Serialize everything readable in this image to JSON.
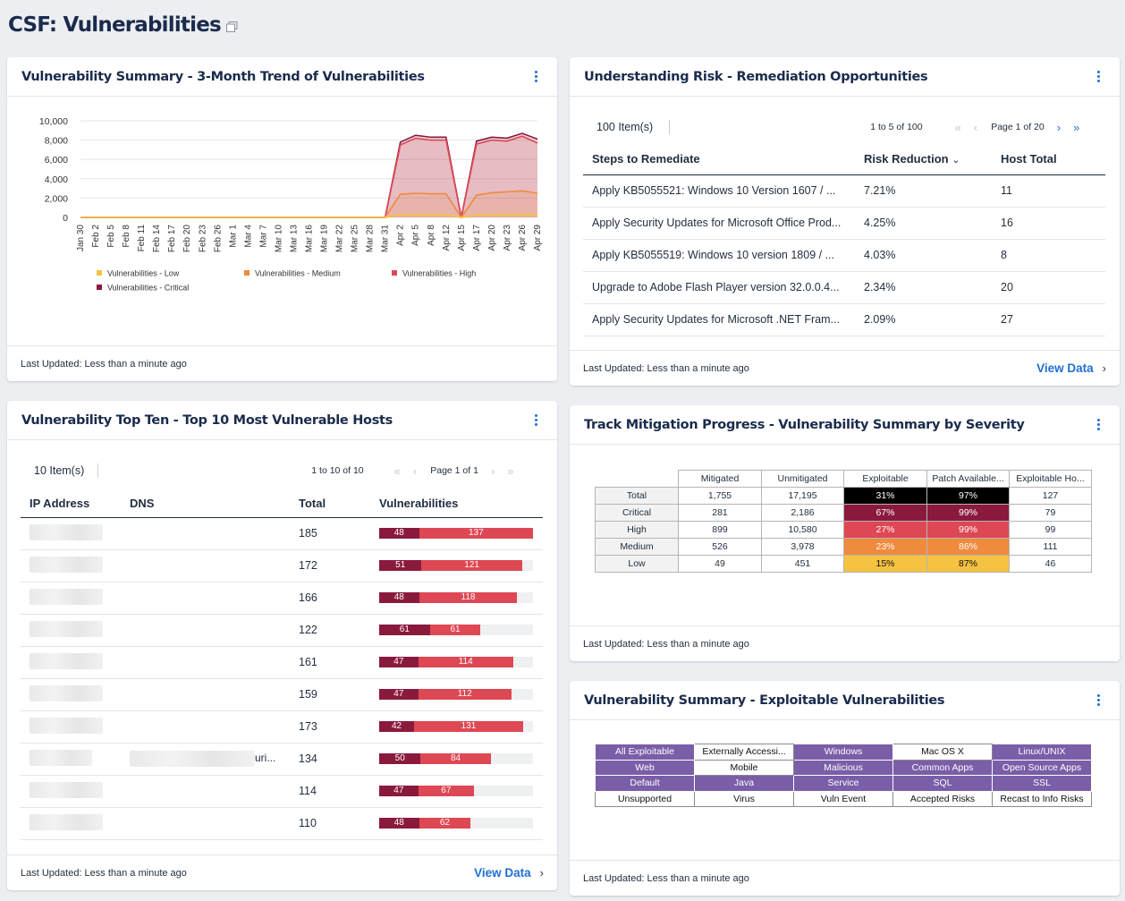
{
  "page": {
    "title": "CSF: Vulnerabilities"
  },
  "footer_updated": "Last Updated: Less than a minute ago",
  "view_data": "View Data",
  "trend_card": {
    "title": "Vulnerability Summary - 3-Month Trend of Vulnerabilities",
    "chart_data": {
      "type": "area",
      "yticks": [
        "10,000",
        "8,000",
        "6,000",
        "4,000",
        "2,000",
        "0"
      ],
      "ylim": [
        0,
        10000
      ],
      "categories": [
        "Jan 30",
        "Feb 2",
        "Feb 5",
        "Feb 8",
        "Feb 11",
        "Feb 14",
        "Feb 17",
        "Feb 20",
        "Feb 23",
        "Feb 26",
        "Mar 1",
        "Mar 4",
        "Mar 7",
        "Mar 10",
        "Mar 13",
        "Mar 16",
        "Mar 19",
        "Mar 22",
        "Mar 25",
        "Mar 28",
        "Mar 31",
        "Apr 2",
        "Apr 5",
        "Apr 8",
        "Apr 12",
        "Apr 15",
        "Apr 17",
        "Apr 20",
        "Apr 23",
        "Apr 26",
        "Apr 29"
      ],
      "series": [
        {
          "name": "Vulnerabilities - Critical",
          "color": "#8a1a3c",
          "values": [
            0,
            0,
            0,
            0,
            0,
            0,
            0,
            0,
            0,
            0,
            0,
            0,
            0,
            0,
            0,
            0,
            0,
            0,
            0,
            0,
            0,
            7800,
            8500,
            8300,
            8300,
            0,
            7900,
            8300,
            8200,
            8700,
            8100
          ]
        },
        {
          "name": "Vulnerabilities - High",
          "color": "#dd4854",
          "values": [
            0,
            0,
            0,
            0,
            0,
            0,
            0,
            0,
            0,
            0,
            0,
            0,
            0,
            0,
            0,
            0,
            0,
            0,
            0,
            0,
            0,
            7500,
            8200,
            8000,
            8000,
            0,
            7600,
            8000,
            7900,
            8400,
            7700
          ]
        },
        {
          "name": "Vulnerabilities - Medium",
          "color": "#f08a3c",
          "values": [
            0,
            0,
            0,
            0,
            0,
            0,
            0,
            0,
            0,
            0,
            0,
            0,
            0,
            0,
            0,
            0,
            0,
            0,
            0,
            0,
            0,
            2400,
            2500,
            2450,
            2450,
            0,
            2300,
            2550,
            2650,
            2750,
            2500
          ]
        },
        {
          "name": "Vulnerabilities - Low",
          "color": "#f5c242",
          "values": [
            0,
            0,
            0,
            0,
            0,
            0,
            0,
            0,
            0,
            0,
            0,
            0,
            0,
            0,
            0,
            0,
            0,
            0,
            0,
            0,
            0,
            300,
            310,
            300,
            300,
            0,
            290,
            310,
            320,
            330,
            300
          ]
        }
      ],
      "legend": [
        "Vulnerabilities - Low",
        "Vulnerabilities - Medium",
        "Vulnerabilities - High",
        "Vulnerabilities - Critical"
      ],
      "legend_colors": [
        "#f5c242",
        "#f08a3c",
        "#dd4854",
        "#8a1a3c"
      ],
      "grid": true,
      "legend_placement": "bottom"
    }
  },
  "remediation_card": {
    "title": "Understanding Risk - Remediation Opportunities",
    "items_count": "100 Item(s)",
    "range": "1 to 5 of 100",
    "page_label": "Page 1 of 20",
    "columns": [
      "Steps to Remediate",
      "Risk Reduction",
      "Host Total"
    ],
    "rows": [
      [
        "Apply KB5055521: Windows 10 Version 1607 / ...",
        "7.21%",
        "11"
      ],
      [
        "Apply Security Updates for Microsoft Office Prod...",
        "4.25%",
        "16"
      ],
      [
        "Apply KB5055519: Windows 10 version 1809 / ...",
        "4.03%",
        "8"
      ],
      [
        "Upgrade to Adobe Flash Player version 32.0.0.4...",
        "2.34%",
        "20"
      ],
      [
        "Apply Security Updates for Microsoft .NET Fram...",
        "2.09%",
        "27"
      ]
    ]
  },
  "topten_card": {
    "title": "Vulnerability Top Ten - Top 10 Most Vulnerable Hosts",
    "items_count": "10 Item(s)",
    "range": "1 to 10 of 10",
    "page_label": "Page 1 of 1",
    "columns": [
      "IP Address",
      "DNS",
      "Total",
      "Vulnerabilities"
    ],
    "rows": [
      {
        "dns": "",
        "total": "185",
        "critical": 48,
        "high": 137
      },
      {
        "dns": "",
        "total": "172",
        "critical": 51,
        "high": 121
      },
      {
        "dns": "",
        "total": "166",
        "critical": 48,
        "high": 118
      },
      {
        "dns": "",
        "total": "122",
        "critical": 61,
        "high": 61
      },
      {
        "dns": "",
        "total": "161",
        "critical": 47,
        "high": 114
      },
      {
        "dns": "",
        "total": "159",
        "critical": 47,
        "high": 112
      },
      {
        "dns": "",
        "total": "173",
        "critical": 42,
        "high": 131
      },
      {
        "dns": "uri...",
        "total": "134",
        "critical": 50,
        "high": 84
      },
      {
        "dns": "",
        "total": "114",
        "critical": 47,
        "high": 67
      },
      {
        "dns": "",
        "total": "110",
        "critical": 48,
        "high": 62
      }
    ]
  },
  "mitigation_card": {
    "title": "Track Mitigation Progress - Vulnerability Summary by Severity",
    "columns": [
      "Mitigated",
      "Unmitigated",
      "Exploitable",
      "Patch Available...",
      "Exploitable Ho..."
    ],
    "rows": [
      {
        "label": "Total",
        "mitigated": "1,755",
        "unmitigated": "17,195",
        "exploitable": "31%",
        "patch": "97%",
        "hosts": "127",
        "exp_bg": "#000000",
        "patch_bg": "#000000",
        "fg": "#ffffff"
      },
      {
        "label": "Critical",
        "mitigated": "281",
        "unmitigated": "2,186",
        "exploitable": "67%",
        "patch": "99%",
        "hosts": "79",
        "exp_bg": "#8a1a3c",
        "patch_bg": "#8a1a3c",
        "fg": "#ffffff"
      },
      {
        "label": "High",
        "mitigated": "899",
        "unmitigated": "10,580",
        "exploitable": "27%",
        "patch": "99%",
        "hosts": "99",
        "exp_bg": "#dd4854",
        "patch_bg": "#dd4854",
        "fg": "#ffffff"
      },
      {
        "label": "Medium",
        "mitigated": "526",
        "unmitigated": "3,978",
        "exploitable": "23%",
        "patch": "86%",
        "hosts": "111",
        "exp_bg": "#f08a3c",
        "patch_bg": "#f08a3c",
        "fg": "#ffffff"
      },
      {
        "label": "Low",
        "mitigated": "49",
        "unmitigated": "451",
        "exploitable": "15%",
        "patch": "87%",
        "hosts": "46",
        "exp_bg": "#f5c242",
        "patch_bg": "#f5c242",
        "fg": "#111111"
      }
    ]
  },
  "exploitable_card": {
    "title": "Vulnerability Summary - Exploitable Vulnerabilities",
    "grid": [
      [
        {
          "label": "All Exploitable",
          "on": true
        },
        {
          "label": "Externally Accessi...",
          "on": false
        },
        {
          "label": "Windows",
          "on": true
        },
        {
          "label": "Mac OS X",
          "on": false
        },
        {
          "label": "Linux/UNIX",
          "on": true
        }
      ],
      [
        {
          "label": "Web",
          "on": true
        },
        {
          "label": "Mobile",
          "on": false
        },
        {
          "label": "Malicious",
          "on": true
        },
        {
          "label": "Common Apps",
          "on": true
        },
        {
          "label": "Open Source Apps",
          "on": true
        }
      ],
      [
        {
          "label": "Default",
          "on": true
        },
        {
          "label": "Java",
          "on": true
        },
        {
          "label": "Service",
          "on": true
        },
        {
          "label": "SQL",
          "on": true
        },
        {
          "label": "SSL",
          "on": true
        }
      ],
      [
        {
          "label": "Unsupported",
          "on": false
        },
        {
          "label": "Virus",
          "on": false
        },
        {
          "label": "Vuln Event",
          "on": false
        },
        {
          "label": "Accepted Risks",
          "on": false
        },
        {
          "label": "Recast to Info Risks",
          "on": false
        }
      ]
    ]
  }
}
